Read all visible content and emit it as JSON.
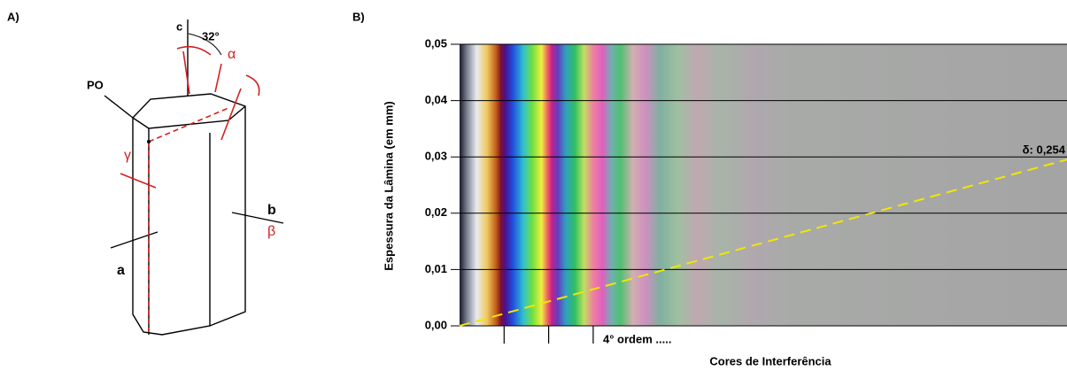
{
  "panel_a": {
    "label": "A)",
    "c": "c",
    "angle": "32°",
    "alpha": "α",
    "po": "PO",
    "gamma": "γ",
    "b": "b",
    "beta": "β",
    "a": "a"
  },
  "chart_data": {
    "type": "michel-levy",
    "panel_label": "B)",
    "y_label": "Espessura da Lâmina (em mm)",
    "x_label": "Cores de Interferência",
    "ylim": [
      0,
      0.05
    ],
    "yticks": [
      {
        "value": 0,
        "label": "0,00"
      },
      {
        "value": 0.01,
        "label": "0,01"
      },
      {
        "value": 0.02,
        "label": "0,02"
      },
      {
        "value": 0.03,
        "label": "0,03"
      },
      {
        "value": 0.04,
        "label": "0,04"
      },
      {
        "value": 0.05,
        "label": "0,05"
      }
    ],
    "xlim": [
      0,
      7500
    ],
    "xticks": [
      550,
      1100,
      1650
    ],
    "grid": true,
    "annotation": "4° ordem .....",
    "line": {
      "label": "δ: 0,254",
      "birefringence": 0.254,
      "color": "#f2e600"
    }
  }
}
